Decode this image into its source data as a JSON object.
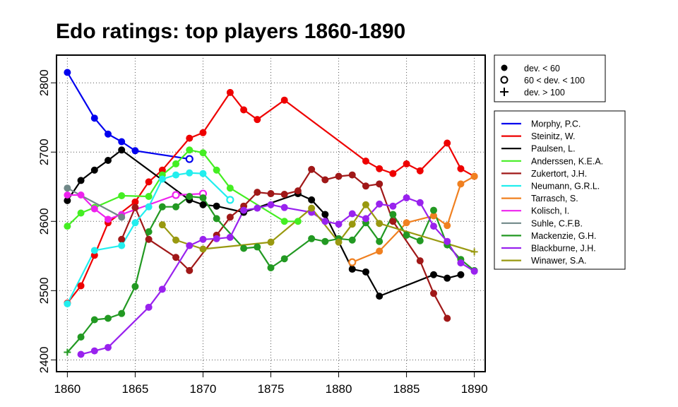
{
  "chart_data": {
    "type": "line",
    "title": "Edo ratings: top players 1860-1890",
    "xlabel": "",
    "ylabel": "",
    "xlim": [
      1859.2,
      1890.8
    ],
    "ylim": [
      2383,
      2840
    ],
    "x_ticks": [
      1860,
      1865,
      1870,
      1875,
      1880,
      1885,
      1890
    ],
    "y_ticks": [
      2400,
      2500,
      2600,
      2700,
      2800
    ],
    "grid": true,
    "legend_position": "right",
    "marker_legend": [
      "dev. < 60",
      "60 < dev. < 100",
      "dev. > 100"
    ],
    "series": [
      {
        "name": "Morphy, P.C.",
        "color": "#0000ee",
        "points": [
          [
            1860,
            2815,
            "f"
          ],
          [
            1862,
            2749,
            "f"
          ],
          [
            1863,
            2726,
            "f"
          ],
          [
            1864,
            2715,
            "f"
          ],
          [
            1865,
            2702,
            "f"
          ],
          [
            1869,
            2690,
            "o"
          ]
        ]
      },
      {
        "name": "Steinitz, W.",
        "color": "#ee0000",
        "points": [
          [
            1860,
            2482,
            "f"
          ],
          [
            1861,
            2507,
            "f"
          ],
          [
            1862,
            2551,
            "f"
          ],
          [
            1863,
            2598,
            "f"
          ],
          [
            1865,
            2628,
            "f"
          ],
          [
            1866,
            2657,
            "f"
          ],
          [
            1867,
            2674,
            "f"
          ],
          [
            1869,
            2720,
            "f"
          ],
          [
            1870,
            2728,
            "f"
          ],
          [
            1872,
            2786,
            "f"
          ],
          [
            1873,
            2761,
            "f"
          ],
          [
            1874,
            2747,
            "f"
          ],
          [
            1876,
            2775,
            "f"
          ],
          [
            1882,
            2687,
            "f"
          ],
          [
            1883,
            2676,
            "f"
          ],
          [
            1884,
            2669,
            "f"
          ],
          [
            1885,
            2683,
            "f"
          ],
          [
            1886,
            2673,
            "f"
          ],
          [
            1888,
            2713,
            "f"
          ],
          [
            1889,
            2676,
            "f"
          ],
          [
            1890,
            2665,
            "f"
          ]
        ]
      },
      {
        "name": "Paulsen, L.",
        "color": "#000000",
        "points": [
          [
            1860,
            2630,
            "f"
          ],
          [
            1861,
            2659,
            "f"
          ],
          [
            1862,
            2674,
            "f"
          ],
          [
            1863,
            2688,
            "f"
          ],
          [
            1864,
            2703,
            "f"
          ],
          [
            1869,
            2631,
            "f"
          ],
          [
            1870,
            2624,
            "f"
          ],
          [
            1871,
            2622,
            "f"
          ],
          [
            1873,
            2613,
            "f"
          ],
          [
            1877,
            2640,
            "f"
          ],
          [
            1878,
            2631,
            "f"
          ],
          [
            1879,
            2610,
            "f"
          ],
          [
            1881,
            2531,
            "f"
          ],
          [
            1882,
            2527,
            "f"
          ],
          [
            1883,
            2492,
            "f"
          ],
          [
            1887,
            2523,
            "f"
          ],
          [
            1888,
            2518,
            "f"
          ],
          [
            1889,
            2523,
            "f"
          ]
        ]
      },
      {
        "name": "Anderssen, K.E.A.",
        "color": "#44ee22",
        "points": [
          [
            1860,
            2593,
            "f"
          ],
          [
            1861,
            2612,
            "f"
          ],
          [
            1862,
            2620,
            "f"
          ],
          [
            1864,
            2637,
            "f"
          ],
          [
            1866,
            2636,
            "f"
          ],
          [
            1867,
            2667,
            "f"
          ],
          [
            1868,
            2683,
            "f"
          ],
          [
            1869,
            2703,
            "f"
          ],
          [
            1870,
            2699,
            "f"
          ],
          [
            1871,
            2674,
            "f"
          ],
          [
            1872,
            2648,
            "f"
          ],
          [
            1876,
            2600,
            "f"
          ],
          [
            1877,
            2600,
            "f"
          ]
        ]
      },
      {
        "name": "Zukertort, J.H.",
        "color": "#a01818",
        "points": [
          [
            1864,
            2574,
            "f"
          ],
          [
            1865,
            2620,
            "f"
          ],
          [
            1866,
            2574,
            "f"
          ],
          [
            1868,
            2548,
            "f"
          ],
          [
            1869,
            2529,
            "f"
          ],
          [
            1871,
            2580,
            "f"
          ],
          [
            1872,
            2606,
            "f"
          ],
          [
            1873,
            2622,
            "f"
          ],
          [
            1874,
            2642,
            "f"
          ],
          [
            1875,
            2640,
            "f"
          ],
          [
            1876,
            2639,
            "f"
          ],
          [
            1877,
            2644,
            "f"
          ],
          [
            1878,
            2675,
            "f"
          ],
          [
            1879,
            2660,
            "f"
          ],
          [
            1880,
            2665,
            "f"
          ],
          [
            1881,
            2667,
            "f"
          ],
          [
            1882,
            2651,
            "f"
          ],
          [
            1883,
            2654,
            "f"
          ],
          [
            1884,
            2600,
            "f"
          ],
          [
            1886,
            2543,
            "f"
          ],
          [
            1887,
            2496,
            "f"
          ],
          [
            1888,
            2460,
            "f"
          ]
        ]
      },
      {
        "name": "Neumann, G.R.L.",
        "color": "#22eeee",
        "points": [
          [
            1860,
            2481,
            "f"
          ],
          [
            1862,
            2558,
            "f"
          ],
          [
            1864,
            2565,
            "f"
          ],
          [
            1865,
            2598,
            "f"
          ],
          [
            1866,
            2621,
            "f"
          ],
          [
            1867,
            2661,
            "f"
          ],
          [
            1868,
            2667,
            "f"
          ],
          [
            1869,
            2670,
            "f"
          ],
          [
            1870,
            2669,
            "f"
          ],
          [
            1872,
            2631,
            "o"
          ]
        ]
      },
      {
        "name": "Tarrasch, S.",
        "color": "#f08020",
        "points": [
          [
            1881,
            2541,
            "o"
          ],
          [
            1883,
            2557,
            "f"
          ],
          [
            1885,
            2598,
            "f"
          ],
          [
            1887,
            2608,
            "f"
          ],
          [
            1888,
            2594,
            "f"
          ],
          [
            1889,
            2654,
            "f"
          ],
          [
            1890,
            2665,
            "f"
          ]
        ]
      },
      {
        "name": "Kolisch, I.",
        "color": "#ee22ee",
        "points": [
          [
            1860,
            2638,
            "f"
          ],
          [
            1861,
            2638,
            "f"
          ],
          [
            1862,
            2618,
            "f"
          ],
          [
            1863,
            2603,
            "f"
          ],
          [
            1864,
            2610,
            "f"
          ],
          [
            1868,
            2638,
            "o"
          ],
          [
            1870,
            2640,
            "o"
          ]
        ]
      },
      {
        "name": "Suhle, C.F.B.",
        "color": "#708888",
        "points": [
          [
            1860,
            2648,
            "f"
          ],
          [
            1864,
            2606,
            "f"
          ]
        ]
      },
      {
        "name": "Mackenzie, G.H.",
        "color": "#229922",
        "points": [
          [
            1860,
            2411,
            "p"
          ],
          [
            1861,
            2433,
            "f"
          ],
          [
            1862,
            2458,
            "f"
          ],
          [
            1863,
            2460,
            "f"
          ],
          [
            1864,
            2467,
            "f"
          ],
          [
            1865,
            2506,
            "f"
          ],
          [
            1866,
            2585,
            "f"
          ],
          [
            1867,
            2621,
            "f"
          ],
          [
            1868,
            2621,
            "f"
          ],
          [
            1869,
            2636,
            "f"
          ],
          [
            1870,
            2634,
            "f"
          ],
          [
            1871,
            2604,
            "f"
          ],
          [
            1873,
            2561,
            "f"
          ],
          [
            1874,
            2563,
            "f"
          ],
          [
            1875,
            2533,
            "f"
          ],
          [
            1876,
            2546,
            "f"
          ],
          [
            1878,
            2575,
            "f"
          ],
          [
            1879,
            2571,
            "f"
          ],
          [
            1880,
            2575,
            "f"
          ],
          [
            1881,
            2573,
            "f"
          ],
          [
            1882,
            2598,
            "f"
          ],
          [
            1883,
            2571,
            "f"
          ],
          [
            1884,
            2610,
            "f"
          ],
          [
            1885,
            2580,
            "f"
          ],
          [
            1886,
            2572,
            "f"
          ],
          [
            1887,
            2616,
            "f"
          ],
          [
            1888,
            2566,
            "f"
          ],
          [
            1889,
            2545,
            "f"
          ],
          [
            1890,
            2529,
            "f"
          ]
        ]
      },
      {
        "name": "Blackburne, J.H.",
        "color": "#9922ee",
        "points": [
          [
            1861,
            2408,
            "f"
          ],
          [
            1862,
            2413,
            "f"
          ],
          [
            1863,
            2418,
            "f"
          ],
          [
            1866,
            2476,
            "f"
          ],
          [
            1867,
            2502,
            "f"
          ],
          [
            1869,
            2565,
            "f"
          ],
          [
            1870,
            2574,
            "f"
          ],
          [
            1871,
            2575,
            "f"
          ],
          [
            1872,
            2577,
            "f"
          ],
          [
            1873,
            2616,
            "f"
          ],
          [
            1874,
            2619,
            "f"
          ],
          [
            1875,
            2624,
            "f"
          ],
          [
            1876,
            2620,
            "f"
          ],
          [
            1878,
            2613,
            "f"
          ],
          [
            1879,
            2600,
            "f"
          ],
          [
            1880,
            2596,
            "f"
          ],
          [
            1881,
            2611,
            "f"
          ],
          [
            1882,
            2604,
            "f"
          ],
          [
            1883,
            2625,
            "f"
          ],
          [
            1884,
            2622,
            "f"
          ],
          [
            1885,
            2634,
            "f"
          ],
          [
            1886,
            2627,
            "f"
          ],
          [
            1887,
            2593,
            "f"
          ],
          [
            1888,
            2571,
            "f"
          ],
          [
            1889,
            2540,
            "f"
          ],
          [
            1890,
            2528,
            "f"
          ]
        ]
      },
      {
        "name": "Winawer, S.A.",
        "color": "#999910",
        "points": [
          [
            1867,
            2595,
            "f"
          ],
          [
            1868,
            2573,
            "f"
          ],
          [
            1870,
            2560,
            "f"
          ],
          [
            1875,
            2570,
            "f"
          ],
          [
            1878,
            2619,
            "f"
          ],
          [
            1880,
            2570,
            "f"
          ],
          [
            1881,
            2596,
            "f"
          ],
          [
            1882,
            2624,
            "f"
          ],
          [
            1883,
            2597,
            "f"
          ],
          [
            1890,
            2556,
            "p"
          ]
        ]
      }
    ]
  }
}
